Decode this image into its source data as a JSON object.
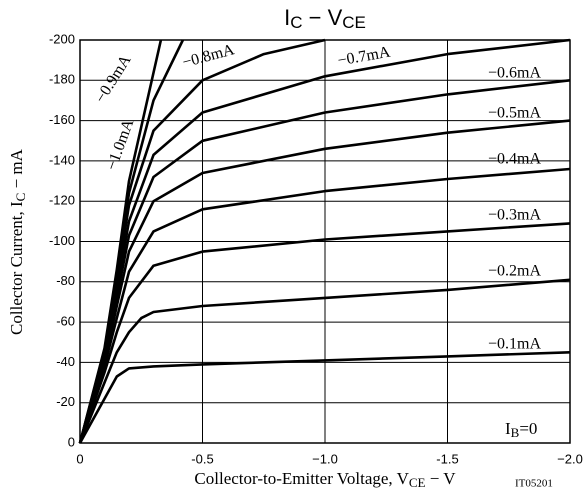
{
  "chart_data": {
    "type": "line",
    "title": [
      "I",
      "C",
      " − V",
      "CE"
    ],
    "xlabel": [
      "Collector-to-Emitter Voltage, V",
      "CE",
      "  −  V"
    ],
    "ylabel": [
      "Collector Current, I",
      "C",
      "  −  mA"
    ],
    "annotation": [
      "I",
      "B",
      "=0"
    ],
    "code": "IT05201",
    "xlim": [
      0,
      -2.0
    ],
    "ylim": [
      0,
      -200
    ],
    "xticks": [
      0,
      -0.5,
      {
        "value": -1.0,
        "label": "−1.0"
      },
      -1.5,
      {
        "value": -2.0,
        "label": "−2.0"
      }
    ],
    "yticks": [
      0,
      -20,
      -40,
      -60,
      -80,
      -100,
      -120,
      -140,
      -160,
      -180,
      -200
    ],
    "grid": true,
    "series": [
      {
        "name": "−0.1mA",
        "color": "#000000",
        "x": [
          0,
          -0.1,
          -0.15,
          -0.2,
          -0.3,
          -0.5,
          -1.0,
          -1.5,
          -2.0
        ],
        "values": [
          0,
          -22,
          -33,
          -37,
          -38,
          -39,
          -41,
          -43,
          -45
        ]
      },
      {
        "name": "−0.2mA",
        "color": "#000000",
        "x": [
          0,
          -0.1,
          -0.15,
          -0.2,
          -0.25,
          -0.3,
          -0.5,
          -1.0,
          -1.5,
          -2.0
        ],
        "values": [
          0,
          -30,
          -45,
          -55,
          -62,
          -65,
          -68,
          -72,
          -76,
          -81
        ]
      },
      {
        "name": "−0.3mA",
        "color": "#000000",
        "x": [
          0,
          -0.1,
          -0.15,
          -0.2,
          -0.3,
          -0.5,
          -1.0,
          -1.5,
          -2.0
        ],
        "values": [
          0,
          -35,
          -55,
          -72,
          -88,
          -95,
          -101,
          -105,
          -109
        ]
      },
      {
        "name": "−0.4mA",
        "color": "#000000",
        "x": [
          0,
          -0.1,
          -0.15,
          -0.2,
          -0.3,
          -0.5,
          -1.0,
          -1.5,
          -2.0
        ],
        "values": [
          0,
          -38,
          -62,
          -85,
          -105,
          -116,
          -125,
          -131,
          -136
        ]
      },
      {
        "name": "−0.5mA",
        "color": "#000000",
        "x": [
          0,
          -0.1,
          -0.15,
          -0.2,
          -0.3,
          -0.5,
          -1.0,
          -1.5,
          -2.0
        ],
        "values": [
          0,
          -40,
          -68,
          -95,
          -120,
          -134,
          -146,
          -154,
          -160
        ]
      },
      {
        "name": "−0.6mA",
        "color": "#000000",
        "x": [
          0,
          -0.1,
          -0.15,
          -0.2,
          -0.3,
          -0.5,
          -1.0,
          -1.5,
          -2.0
        ],
        "values": [
          0,
          -42,
          -72,
          -103,
          -132,
          -150,
          -164,
          -173,
          -180
        ]
      },
      {
        "name": "−0.7mA",
        "color": "#000000",
        "x": [
          0,
          -0.1,
          -0.15,
          -0.2,
          -0.3,
          -0.5,
          -1.0,
          -1.5,
          -2.0
        ],
        "values": [
          0,
          -44,
          -76,
          -110,
          -143,
          -164,
          -182,
          -193,
          -200
        ]
      },
      {
        "name": "−0.8mA",
        "color": "#000000",
        "x": [
          0,
          -0.1,
          -0.15,
          -0.2,
          -0.3,
          -0.5,
          -0.75,
          -1.0
        ],
        "values": [
          0,
          -45,
          -80,
          -118,
          -155,
          -180,
          -193,
          -200
        ]
      },
      {
        "name": "−0.9mA",
        "color": "#000000",
        "x": [
          0,
          -0.1,
          -0.15,
          -0.2,
          -0.3,
          -0.42
        ],
        "values": [
          0,
          -46,
          -83,
          -124,
          -170,
          -200
        ]
      },
      {
        "name": "−1.0mA",
        "color": "#000000",
        "x": [
          0,
          -0.1,
          -0.15,
          -0.2,
          -0.33
        ],
        "values": [
          0,
          -47,
          -86,
          -130,
          -200
        ]
      }
    ]
  }
}
